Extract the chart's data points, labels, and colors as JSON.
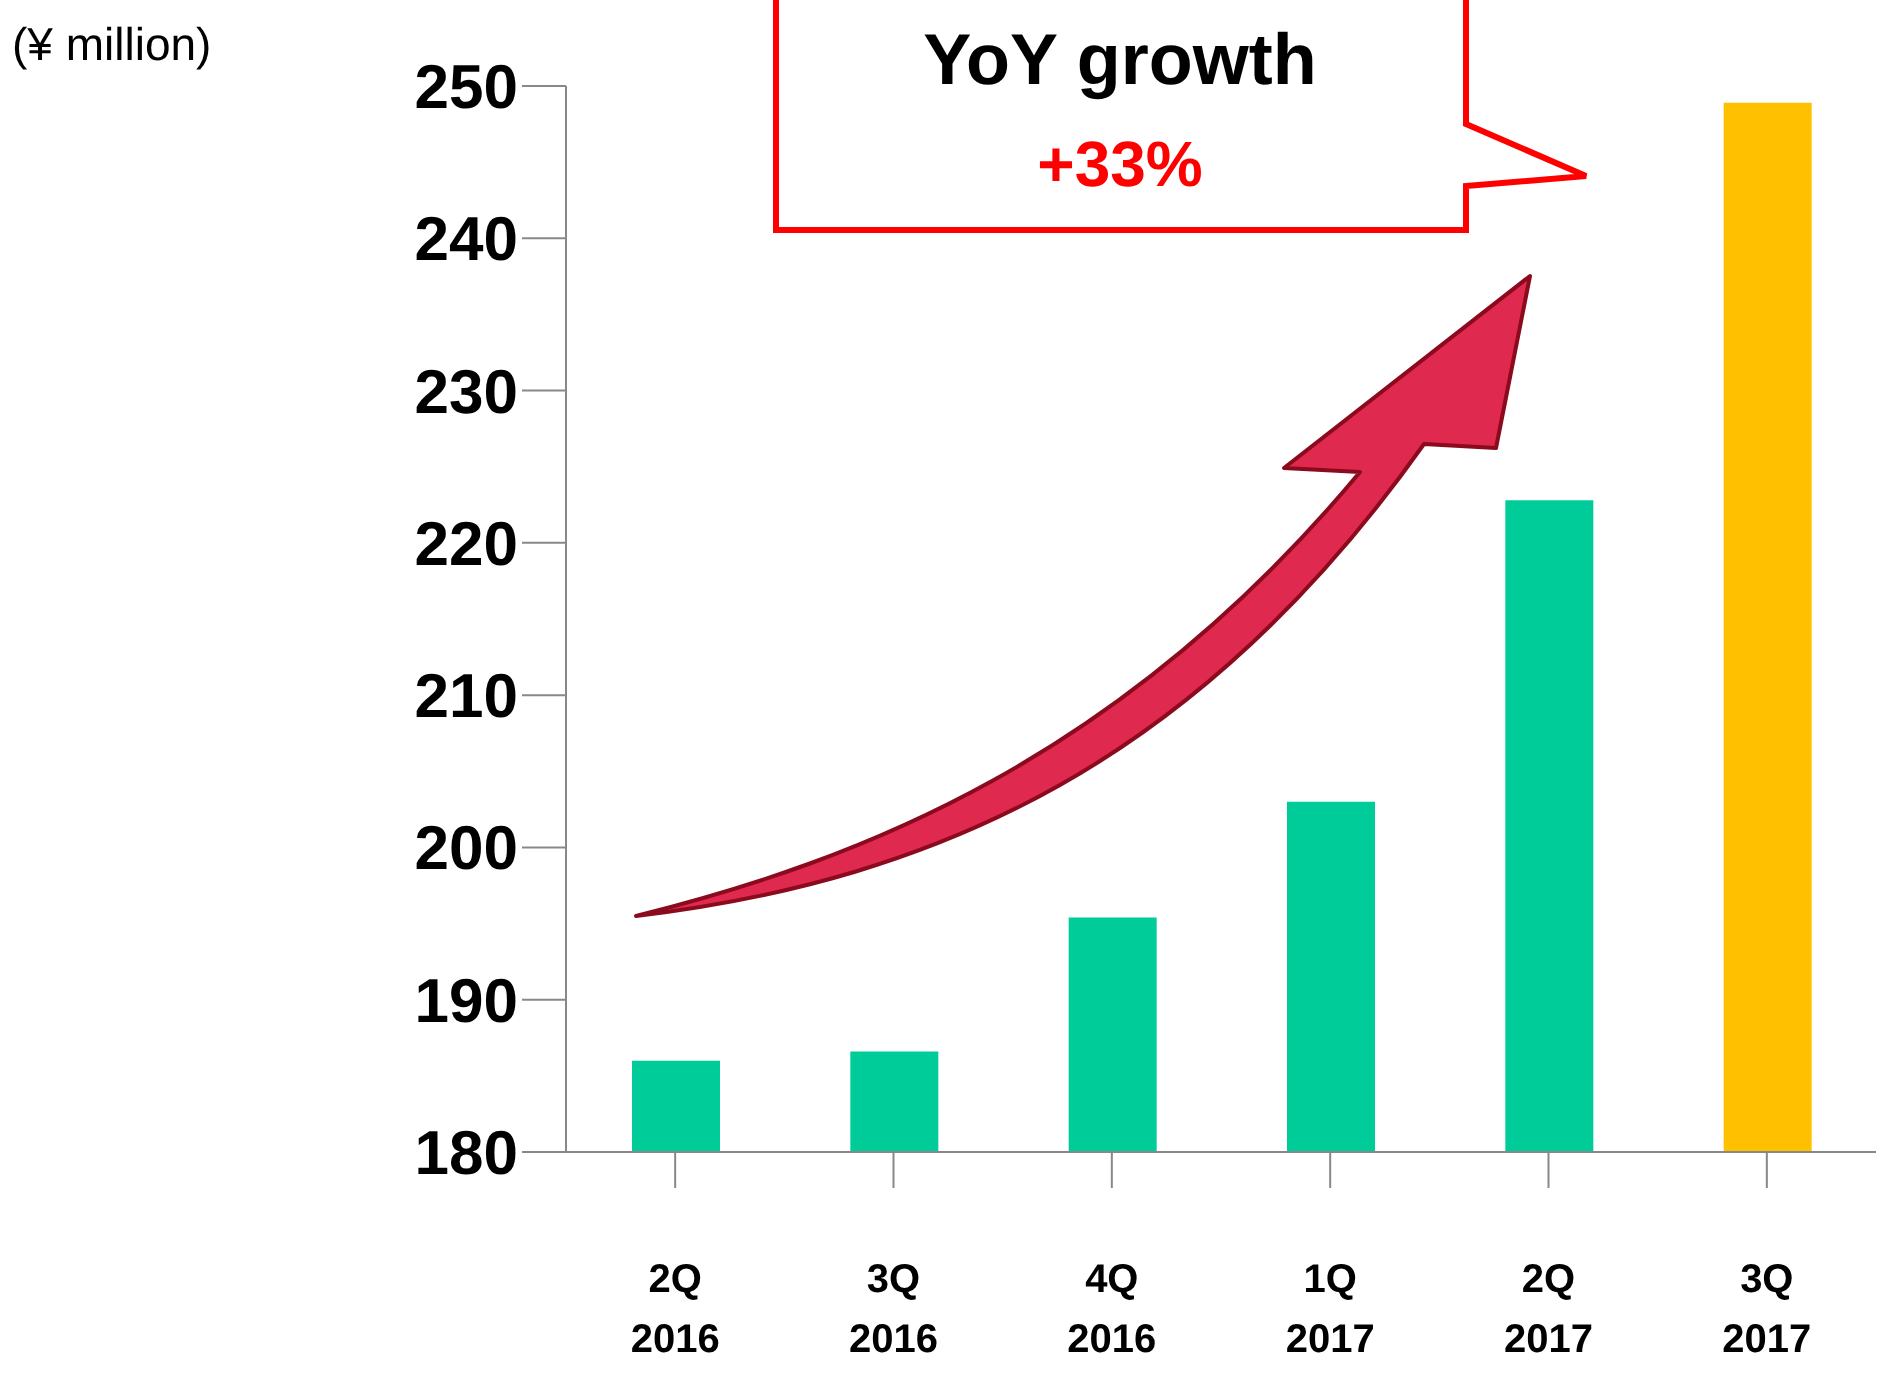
{
  "chart_data": {
    "type": "bar",
    "ylabel": "(¥ million)",
    "categories": [
      "2Q 2016",
      "3Q 2016",
      "4Q 2016",
      "1Q 2017",
      "2Q 2017",
      "3Q 2017"
    ],
    "values": [
      186.0,
      186.6,
      195.4,
      203.0,
      222.8,
      248.9
    ],
    "colors": [
      "#00cc99",
      "#00cc99",
      "#00cc99",
      "#00cc99",
      "#00cc99",
      "#ffc000"
    ],
    "ylim": [
      180,
      250
    ],
    "yticks": [
      180,
      190,
      200,
      210,
      220,
      230,
      240,
      250
    ],
    "annotations": [
      "YoY growth",
      "+33%"
    ]
  }
}
